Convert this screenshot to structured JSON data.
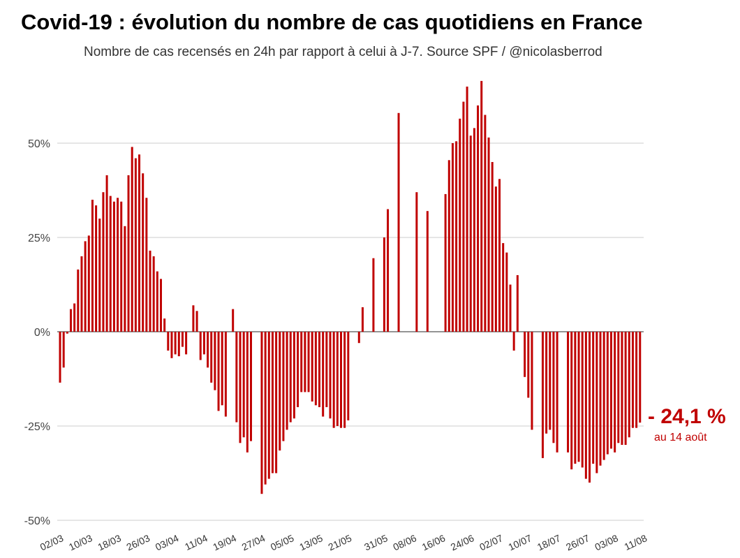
{
  "title": "Covid-19 : évolution du nombre de cas quotidiens en France",
  "subtitle": "Nombre de cas recensés en 24h par rapport à celui à J-7. Source SPF / @nicolasberrod",
  "callout": {
    "value": "- 24,1 %",
    "date": "au 14 août"
  },
  "colors": {
    "bar": "#c00000",
    "grid": "#cccccc",
    "axis": "#555555"
  },
  "chart_data": {
    "type": "bar",
    "title": "Covid-19 : évolution du nombre de cas quotidiens en France",
    "ylabel": "",
    "xlabel": "",
    "ylim": [
      -50,
      75
    ],
    "yticks": [
      -50,
      -25,
      0,
      25,
      50
    ],
    "ytick_labels": [
      "-50%",
      "-25%",
      "0%",
      "25%",
      "50%"
    ],
    "grid": true,
    "categories_start": "02/03",
    "categories_end": "14/08",
    "xtick_labels": [
      "02/03",
      "10/03",
      "18/03",
      "26/03",
      "03/04",
      "11/04",
      "19/04",
      "27/04",
      "05/05",
      "13/05",
      "21/05",
      "31/05",
      "08/06",
      "16/06",
      "24/06",
      "02/07",
      "10/07",
      "18/07",
      "26/07",
      "03/08",
      "11/08"
    ],
    "xtick_day_index": [
      0,
      8,
      16,
      24,
      32,
      40,
      48,
      56,
      64,
      72,
      80,
      90,
      98,
      106,
      114,
      122,
      130,
      138,
      146,
      154,
      162
    ],
    "values": [
      -13.5,
      -9.5,
      -0.5,
      6,
      7.5,
      16.5,
      20,
      24,
      25.5,
      35,
      33.5,
      30,
      37,
      41.5,
      36,
      34.5,
      35.5,
      34.5,
      28,
      41.5,
      49,
      46,
      47,
      42,
      35.5,
      21.5,
      20,
      16,
      14,
      3.5,
      -5,
      -7,
      -6,
      -6.5,
      -4,
      -6,
      null,
      7,
      5.5,
      -7.5,
      -6,
      -9.5,
      -13.5,
      -15.5,
      -21,
      -19.5,
      -22.5,
      null,
      6,
      -24,
      -29.5,
      -28,
      -32,
      -29,
      null,
      null,
      -43,
      -40.5,
      -39,
      -37.5,
      -37.5,
      -31.5,
      -29,
      -26,
      -24,
      -23,
      -20,
      -16,
      -16,
      -16,
      -18.5,
      -19.5,
      -20,
      -22.5,
      -20,
      -23,
      -25.5,
      -25,
      -25.5,
      -25.5,
      -23.5,
      null,
      null,
      -3,
      6.5,
      null,
      null,
      19.5,
      null,
      null,
      25,
      32.5,
      null,
      null,
      58,
      null,
      null,
      null,
      null,
      37,
      null,
      null,
      32,
      null,
      null,
      null,
      null,
      36.5,
      45.5,
      50,
      50.5,
      56.5,
      61,
      65,
      52,
      54,
      60,
      66.5,
      57.5,
      51.5,
      45,
      38.5,
      40.5,
      23.5,
      21,
      12.5,
      -5,
      15,
      null,
      -12,
      -17.5,
      -26,
      null,
      null,
      -33.5,
      -27,
      -26,
      -29.5,
      -32,
      null,
      null,
      -32,
      -36.5,
      -35,
      -34.5,
      -36,
      -39,
      -40,
      -35,
      -37.5,
      -35.5,
      -34,
      -32.5,
      -31,
      -32,
      -29.5,
      -30,
      -30,
      -28,
      -25.5,
      -25.5,
      -24.1
    ]
  }
}
